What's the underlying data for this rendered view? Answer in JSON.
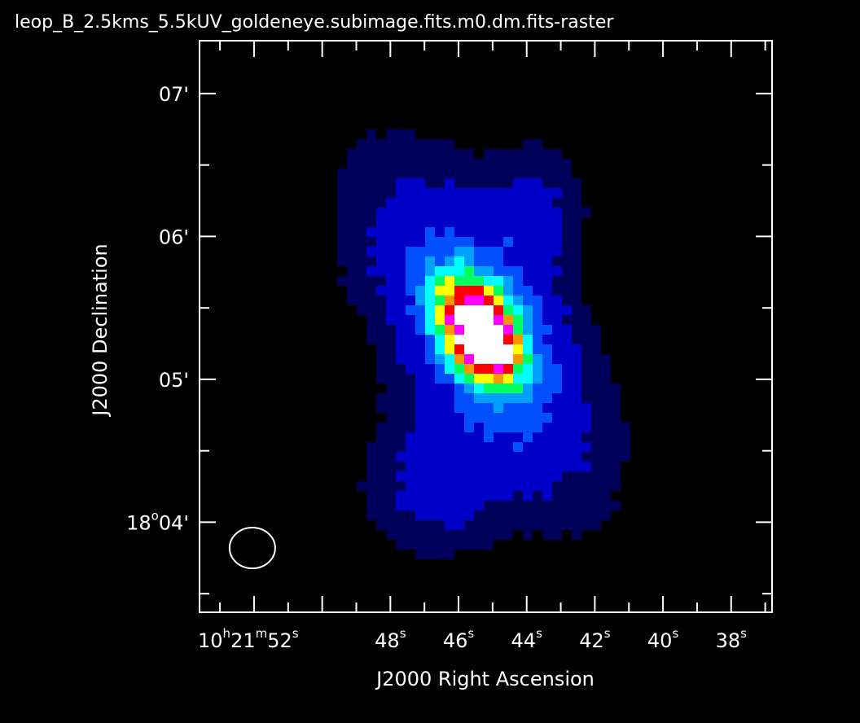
{
  "window_title": "leop_B_2.5kms_5.5kUV_goldeneye.subimage.fits.m0.dm.fits-raster",
  "chart_data": {
    "type": "heatmap",
    "xlabel": "J2000 Right Ascension",
    "ylabel": "J2000 Declination",
    "x_ticks": [
      {
        "major": "10",
        "sup1": "h",
        "mid": "21",
        "sup2": "m",
        "minor": "52",
        "sup3": "s",
        "ra_s": 52
      },
      {
        "minor": "48",
        "sup3": "s",
        "ra_s": 48
      },
      {
        "minor": "46",
        "sup3": "s",
        "ra_s": 46
      },
      {
        "minor": "44",
        "sup3": "s",
        "ra_s": 44
      },
      {
        "minor": "42",
        "sup3": "s",
        "ra_s": 42
      },
      {
        "minor": "40",
        "sup3": "s",
        "ra_s": 40
      },
      {
        "minor": "38",
        "sup3": "s",
        "ra_s": 38
      }
    ],
    "y_ticks": [
      {
        "label": "07'",
        "dec_arcmin": 7
      },
      {
        "label": "06'",
        "dec_arcmin": 6
      },
      {
        "label": "05'",
        "dec_arcmin": 5
      },
      {
        "label": "04'",
        "prefix": "18",
        "sup": "o",
        "dec_arcmin": 4
      }
    ],
    "xlim_ra_seconds": [
      53.6,
      36.8
    ],
    "ylim_dec_arcmin": [
      3.37,
      7.37
    ],
    "beam": {
      "ra_s": 52.05,
      "dec_arcmin": 3.82
    },
    "colormap": [
      "#000000",
      "#00005a",
      "#0000c8",
      "#0050ff",
      "#00a0ff",
      "#00ffff",
      "#00ff60",
      "#ffff00",
      "#ff9600",
      "#ff0000",
      "#ff00ff",
      "#ffffff"
    ],
    "source": {
      "peak_ra_s": 45.35,
      "peak_dec_arcmin": 5.33,
      "peak_level": 1.0,
      "background": 0.0,
      "orientation": "elongated north-east to south-west"
    }
  }
}
